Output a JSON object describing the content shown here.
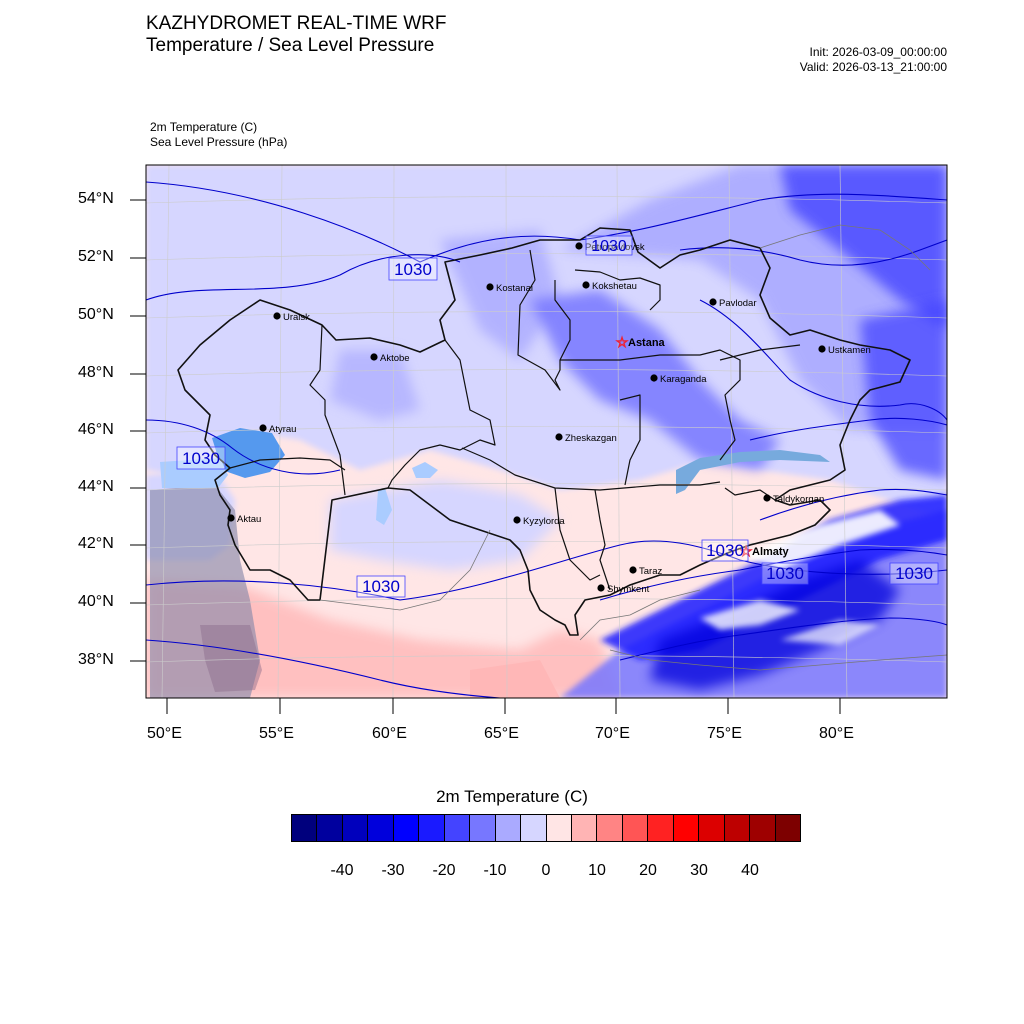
{
  "header": {
    "title_line1": "KAZHYDROMET REAL-TIME WRF",
    "title_line2": "Temperature / Sea Level Pressure",
    "init": "Init: 2026-03-09_00:00:00",
    "valid": "Valid: 2026-03-13_21:00:00"
  },
  "fields": {
    "temperature": "2m Temperature   (C)",
    "pressure": "Sea Level Pressure   (hPa)"
  },
  "axes": {
    "lat_ticks": [
      "54°N",
      "52°N",
      "50°N",
      "48°N",
      "46°N",
      "44°N",
      "42°N",
      "40°N",
      "38°N"
    ],
    "lon_ticks": [
      "50°E",
      "55°E",
      "60°E",
      "65°E",
      "70°E",
      "75°E",
      "80°E"
    ]
  },
  "cities": [
    {
      "name": "Petropavlovsk",
      "bold": false
    },
    {
      "name": "Kostanai",
      "bold": false
    },
    {
      "name": "Kokshetau",
      "bold": false
    },
    {
      "name": "Pavlodar",
      "bold": false
    },
    {
      "name": "Uralsk",
      "bold": false
    },
    {
      "name": "Astana",
      "bold": true,
      "capital": true
    },
    {
      "name": "Ustkamen",
      "bold": false
    },
    {
      "name": "Aktobe",
      "bold": false
    },
    {
      "name": "Karaganda",
      "bold": false
    },
    {
      "name": "Atyrau",
      "bold": false
    },
    {
      "name": "Zheskazgan",
      "bold": false
    },
    {
      "name": "Taldykorgan",
      "bold": false
    },
    {
      "name": "Aktau",
      "bold": false
    },
    {
      "name": "Kyzylorda",
      "bold": false
    },
    {
      "name": "Almaty",
      "bold": true,
      "capital": true
    },
    {
      "name": "Taraz",
      "bold": false
    },
    {
      "name": "Shymkent",
      "bold": false
    }
  ],
  "isobar_labels": [
    "1030",
    "1030",
    "1030",
    "1030",
    "1030",
    "1030",
    "1030"
  ],
  "colorbar": {
    "title": "2m Temperature  (C)",
    "labels": [
      "-40",
      "-30",
      "-20",
      "-10",
      "0",
      "10",
      "20",
      "30",
      "40"
    ],
    "colors": [
      "#00007d",
      "#00009e",
      "#0000bd",
      "#0000dc",
      "#0000ff",
      "#1a1aff",
      "#4444ff",
      "#7777ff",
      "#aaaaff",
      "#d6d6ff",
      "#ffe5e5",
      "#ffb4b4",
      "#ff8484",
      "#ff5555",
      "#ff2222",
      "#ff0000",
      "#dc0000",
      "#bd0000",
      "#9e0000",
      "#7d0000"
    ]
  }
}
